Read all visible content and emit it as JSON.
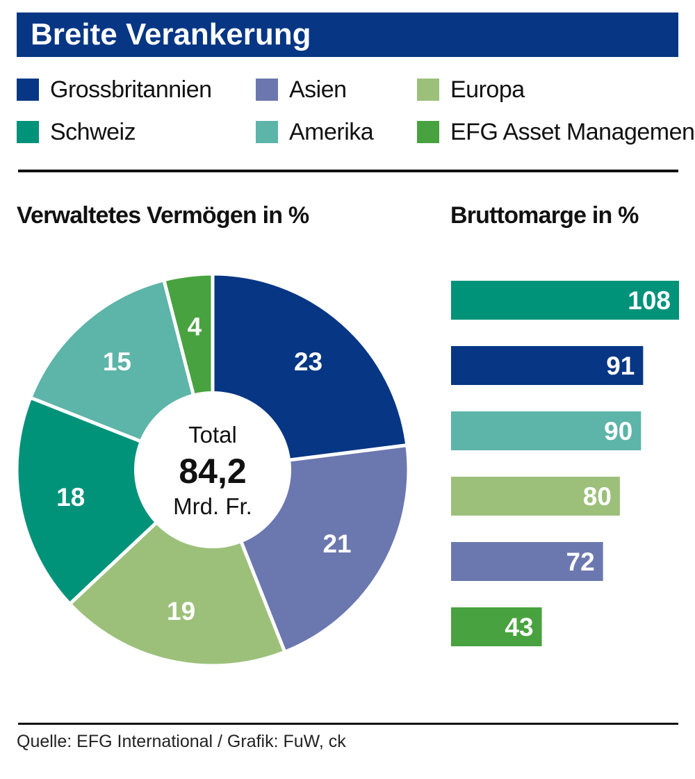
{
  "title": "Breite Verankerung",
  "legend": [
    {
      "key": "gb",
      "label": "Grossbritannien",
      "color": "#063684"
    },
    {
      "key": "asien",
      "label": "Asien",
      "color": "#6b77af"
    },
    {
      "key": "europa",
      "label": "Europa",
      "color": "#9cc07a"
    },
    {
      "key": "schweiz",
      "label": "Schweiz",
      "color": "#01927a"
    },
    {
      "key": "amerika",
      "label": "Amerika",
      "color": "#5db4a8"
    },
    {
      "key": "efg",
      "label": "EFG Asset Management",
      "color": "#48a23f"
    }
  ],
  "chart_data": [
    {
      "type": "pie",
      "title": "Verwaltetes Vermögen in %",
      "center_label": {
        "line1": "Total",
        "value": "84,2",
        "line3": "Mrd. Fr."
      },
      "categories": [
        "Grossbritannien",
        "Asien",
        "Europa",
        "Schweiz",
        "Amerika",
        "EFG Asset Management"
      ],
      "values": [
        23,
        21,
        19,
        18,
        15,
        4
      ],
      "colors": [
        "#063684",
        "#6b77af",
        "#9cc07a",
        "#01927a",
        "#5db4a8",
        "#48a23f"
      ]
    },
    {
      "type": "bar",
      "orientation": "horizontal",
      "title": "Bruttomarge in %",
      "categories": [
        "Schweiz",
        "Grossbritannien",
        "Amerika",
        "Europa",
        "Asien",
        "EFG Asset Management"
      ],
      "values": [
        108,
        91,
        90,
        80,
        72,
        43
      ],
      "colors": [
        "#01927a",
        "#063684",
        "#5db4a8",
        "#9cc07a",
        "#6b77af",
        "#48a23f"
      ],
      "xlim": [
        0,
        108
      ]
    }
  ],
  "source": "Quelle: EFG International / Grafik: FuW, ck"
}
